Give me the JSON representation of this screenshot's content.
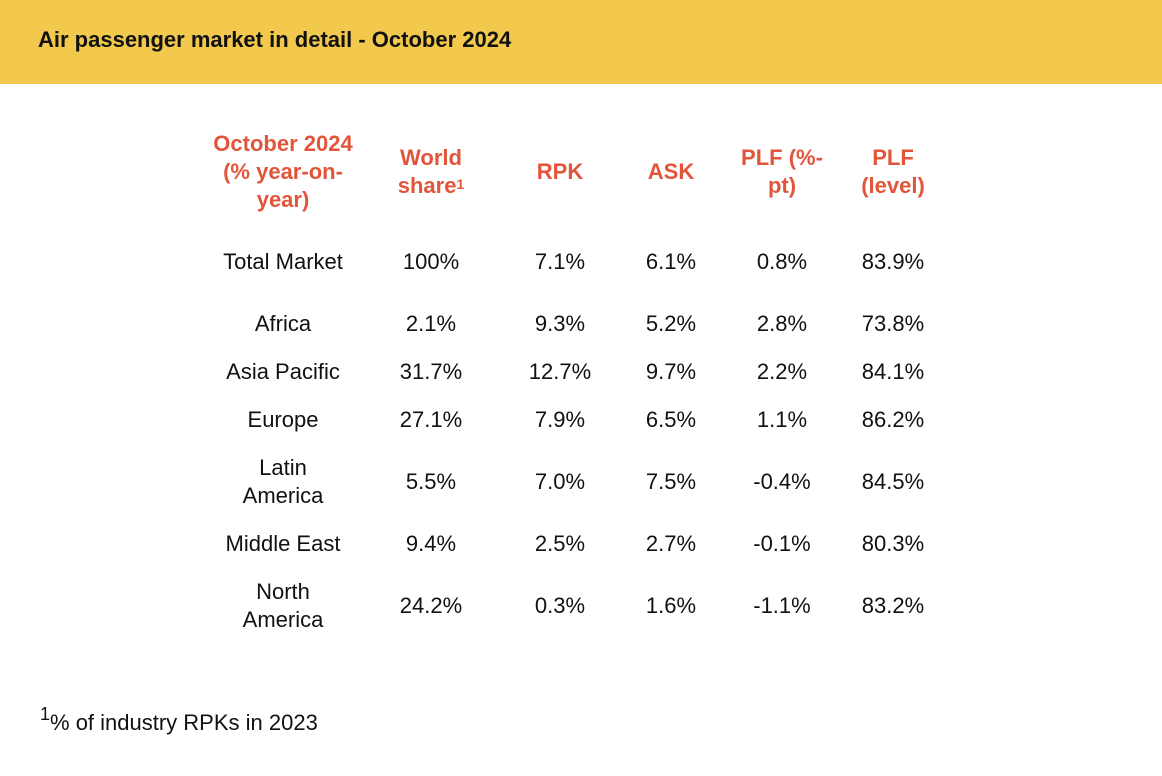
{
  "banner": {
    "title": "Air passenger market in detail - October 2024"
  },
  "table": {
    "headers": {
      "region": "October 2024 (% year-on-year)",
      "world_share": "World share",
      "world_share_mark": "1",
      "rpk": "RPK",
      "ask": "ASK",
      "plf_pt": "PLF (%-pt)",
      "plf_level": "PLF (level)"
    },
    "rows": [
      {
        "region": "Total Market",
        "world_share": "100%",
        "rpk": "7.1%",
        "ask": "6.1%",
        "plf_pt": "0.8%",
        "plf_level": "83.9%"
      },
      {
        "region": "Africa",
        "world_share": "2.1%",
        "rpk": "9.3%",
        "ask": "5.2%",
        "plf_pt": "2.8%",
        "plf_level": "73.8%"
      },
      {
        "region": "Asia Pacific",
        "world_share": "31.7%",
        "rpk": "12.7%",
        "ask": "9.7%",
        "plf_pt": "2.2%",
        "plf_level": "84.1%"
      },
      {
        "region": "Europe",
        "world_share": "27.1%",
        "rpk": "7.9%",
        "ask": "6.5%",
        "plf_pt": "1.1%",
        "plf_level": "86.2%"
      },
      {
        "region": "Latin America",
        "world_share": "5.5%",
        "rpk": "7.0%",
        "ask": "7.5%",
        "plf_pt": "-0.4%",
        "plf_level": "84.5%"
      },
      {
        "region": "Middle East",
        "world_share": "9.4%",
        "rpk": "2.5%",
        "ask": "2.7%",
        "plf_pt": "-0.1%",
        "plf_level": "80.3%"
      },
      {
        "region": "North America",
        "world_share": "24.2%",
        "rpk": "0.3%",
        "ask": "1.6%",
        "plf_pt": "-1.1%",
        "plf_level": "83.2%"
      }
    ]
  },
  "footnote": {
    "mark": "1",
    "text": "% of industry RPKs in 2023"
  },
  "colors": {
    "banner": "#f2c94c",
    "header_text": "#e2553a",
    "body_text": "#111111"
  }
}
